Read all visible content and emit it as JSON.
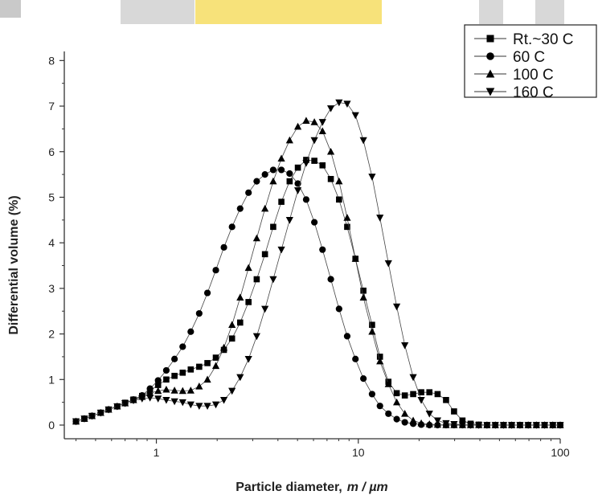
{
  "chart_data": {
    "type": "scatter",
    "title": "",
    "xlabel_prefix": "Particle diameter,",
    "xlabel_unit": "m / µm",
    "ylabel": "Differential volume (%)",
    "xscale": "log",
    "xlim": [
      0.35,
      100
    ],
    "ylim": [
      -0.3,
      8.2
    ],
    "x_ticks": [
      1,
      10,
      100
    ],
    "x_tick_labels": [
      "1",
      "10",
      "100"
    ],
    "y_ticks": [
      0,
      1,
      2,
      3,
      4,
      5,
      6,
      7,
      8
    ],
    "y_tick_labels": [
      "0",
      "1",
      "2",
      "3",
      "4",
      "5",
      "6",
      "7",
      "8"
    ],
    "legend_position": "top-right",
    "grid": false,
    "series": [
      {
        "name": "Rt.~30 C",
        "marker": "square",
        "x": [
          0.4,
          0.44,
          0.48,
          0.53,
          0.58,
          0.64,
          0.7,
          0.77,
          0.85,
          0.93,
          1.02,
          1.12,
          1.23,
          1.35,
          1.48,
          1.63,
          1.79,
          1.97,
          2.16,
          2.37,
          2.6,
          2.86,
          3.14,
          3.45,
          3.79,
          4.16,
          4.57,
          5.02,
          5.52,
          6.06,
          6.65,
          7.31,
          8.03,
          8.81,
          9.68,
          10.6,
          11.7,
          12.8,
          14.1,
          15.5,
          17.0,
          18.7,
          20.5,
          22.5,
          24.7,
          27.2,
          29.8,
          32.8,
          36.0,
          39.5,
          43.4,
          47.7,
          52.4,
          57.5,
          63.2,
          69.4,
          76.2,
          83.7,
          91.9,
          100
        ],
        "y": [
          0.08,
          0.14,
          0.2,
          0.27,
          0.34,
          0.41,
          0.49,
          0.56,
          0.64,
          0.75,
          0.88,
          1.0,
          1.08,
          1.15,
          1.22,
          1.28,
          1.36,
          1.48,
          1.65,
          1.9,
          2.25,
          2.7,
          3.2,
          3.75,
          4.35,
          4.9,
          5.35,
          5.65,
          5.82,
          5.8,
          5.7,
          5.4,
          4.95,
          4.35,
          3.65,
          2.95,
          2.2,
          1.5,
          0.95,
          0.7,
          0.65,
          0.68,
          0.72,
          0.72,
          0.68,
          0.55,
          0.3,
          0.1,
          0.03,
          0.01,
          0.0,
          0.0,
          0.0,
          0.0,
          0.0,
          0.0,
          0.0,
          0.0,
          0.0,
          0.0
        ]
      },
      {
        "name": "60 C",
        "marker": "circle",
        "x": [
          0.4,
          0.44,
          0.48,
          0.53,
          0.58,
          0.64,
          0.7,
          0.77,
          0.85,
          0.93,
          1.02,
          1.12,
          1.23,
          1.35,
          1.48,
          1.63,
          1.79,
          1.97,
          2.16,
          2.37,
          2.6,
          2.86,
          3.14,
          3.45,
          3.79,
          4.16,
          4.57,
          5.02,
          5.52,
          6.06,
          6.65,
          7.31,
          8.03,
          8.81,
          9.68,
          10.6,
          11.7,
          12.8,
          14.1,
          15.5,
          17.0,
          18.7,
          20.5,
          22.5,
          24.7,
          27.2,
          29.8,
          32.8,
          36.0,
          39.5,
          43.4,
          47.7,
          52.4,
          57.5,
          63.2,
          69.4,
          76.2,
          83.7,
          91.9,
          100
        ],
        "y": [
          0.08,
          0.14,
          0.2,
          0.27,
          0.34,
          0.41,
          0.48,
          0.56,
          0.65,
          0.8,
          0.98,
          1.2,
          1.45,
          1.72,
          2.05,
          2.45,
          2.9,
          3.4,
          3.9,
          4.35,
          4.75,
          5.1,
          5.35,
          5.5,
          5.6,
          5.6,
          5.52,
          5.3,
          4.95,
          4.45,
          3.85,
          3.2,
          2.55,
          1.95,
          1.45,
          1.02,
          0.68,
          0.42,
          0.25,
          0.13,
          0.06,
          0.03,
          0.01,
          0.0,
          0.0,
          0.0,
          0.0,
          0.0,
          0.0,
          0.0,
          0.0,
          0.0,
          0.0,
          0.0,
          0.0,
          0.0,
          0.0,
          0.0,
          0.0,
          0.0
        ]
      },
      {
        "name": "100 C",
        "marker": "triangle-up",
        "x": [
          0.4,
          0.44,
          0.48,
          0.53,
          0.58,
          0.64,
          0.7,
          0.77,
          0.85,
          0.93,
          1.02,
          1.12,
          1.23,
          1.35,
          1.48,
          1.63,
          1.79,
          1.97,
          2.16,
          2.37,
          2.6,
          2.86,
          3.14,
          3.45,
          3.79,
          4.16,
          4.57,
          5.02,
          5.52,
          6.06,
          6.65,
          7.31,
          8.03,
          8.81,
          9.68,
          10.6,
          11.7,
          12.8,
          14.1,
          15.5,
          17.0,
          18.7,
          20.5,
          22.5,
          24.7,
          27.2,
          29.8,
          32.8,
          36.0,
          39.5,
          43.4,
          47.7,
          52.4,
          57.5,
          63.2,
          69.4,
          76.2,
          83.7,
          91.9,
          100
        ],
        "y": [
          0.08,
          0.14,
          0.2,
          0.27,
          0.34,
          0.41,
          0.48,
          0.55,
          0.62,
          0.7,
          0.75,
          0.78,
          0.76,
          0.75,
          0.76,
          0.85,
          1.0,
          1.3,
          1.7,
          2.2,
          2.8,
          3.45,
          4.1,
          4.75,
          5.35,
          5.85,
          6.25,
          6.55,
          6.68,
          6.65,
          6.45,
          6.0,
          5.35,
          4.55,
          3.65,
          2.8,
          2.05,
          1.4,
          0.9,
          0.5,
          0.25,
          0.1,
          0.04,
          0.02,
          0.01,
          0.0,
          0.0,
          0.0,
          0.0,
          0.0,
          0.0,
          0.0,
          0.0,
          0.0,
          0.0,
          0.0,
          0.0,
          0.0,
          0.0,
          0.0
        ]
      },
      {
        "name": "160 C",
        "marker": "triangle-down",
        "x": [
          0.4,
          0.44,
          0.48,
          0.53,
          0.58,
          0.64,
          0.7,
          0.77,
          0.85,
          0.93,
          1.02,
          1.12,
          1.23,
          1.35,
          1.48,
          1.63,
          1.79,
          1.97,
          2.16,
          2.37,
          2.6,
          2.86,
          3.14,
          3.45,
          3.79,
          4.16,
          4.57,
          5.02,
          5.52,
          6.06,
          6.65,
          7.31,
          8.03,
          8.81,
          9.68,
          10.6,
          11.7,
          12.8,
          14.1,
          15.5,
          17.0,
          18.7,
          20.5,
          22.5,
          24.7,
          27.2,
          29.8,
          32.8,
          36.0,
          39.5,
          43.4,
          47.7,
          52.4,
          57.5,
          63.2,
          69.4,
          76.2,
          83.7,
          91.9,
          100
        ],
        "y": [
          0.08,
          0.14,
          0.2,
          0.27,
          0.34,
          0.41,
          0.48,
          0.54,
          0.58,
          0.6,
          0.58,
          0.55,
          0.52,
          0.5,
          0.45,
          0.42,
          0.42,
          0.45,
          0.55,
          0.75,
          1.05,
          1.45,
          1.95,
          2.55,
          3.2,
          3.85,
          4.5,
          5.15,
          5.75,
          6.25,
          6.65,
          6.95,
          7.08,
          7.05,
          6.8,
          6.25,
          5.45,
          4.55,
          3.55,
          2.6,
          1.75,
          1.05,
          0.55,
          0.25,
          0.1,
          0.04,
          0.02,
          0.01,
          0.0,
          0.0,
          0.0,
          0.0,
          0.0,
          0.0,
          0.0,
          0.0,
          0.0,
          0.0,
          0.0,
          0.0
        ]
      }
    ]
  }
}
